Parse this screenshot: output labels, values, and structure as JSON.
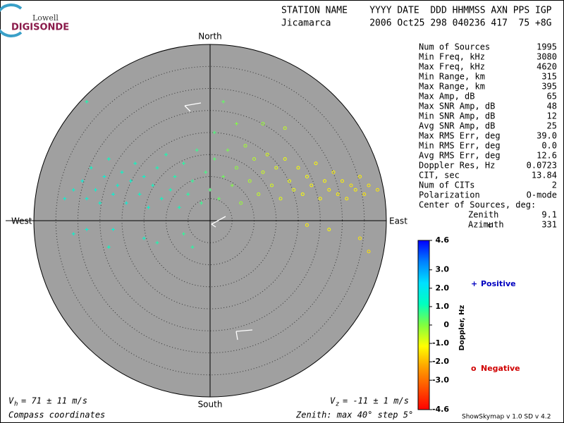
{
  "logo": {
    "top": "Lowell",
    "bottom": "DIGISONDE"
  },
  "header": {
    "line1": "STATION NAME    YYYY DATE  DDD HHMMSS AXN PPS IGP",
    "line2": "Jicamarca       2006 Oct25 298 040236 417  75 +8G"
  },
  "compass": {
    "north": "North",
    "south": "South",
    "east": "East",
    "west": "West"
  },
  "stats": {
    "rows": [
      [
        "Num of Sources",
        "1995"
      ],
      [
        "Min Freq, kHz",
        "3080"
      ],
      [
        "Max Freq, kHz",
        "4620"
      ],
      [
        "Min Range, km",
        "315"
      ],
      [
        "Max Range, km",
        "395"
      ],
      [
        "Max Amp, dB",
        "65"
      ],
      [
        "Max SNR Amp, dB",
        "48"
      ],
      [
        "Min SNR Amp, dB",
        "12"
      ],
      [
        "Avg SNR Amp, dB",
        "25"
      ],
      [
        "Max RMS Err, deg",
        "39.0"
      ],
      [
        "Min RMS Err, deg",
        "0.0"
      ],
      [
        "Avg RMS Err, deg",
        "12.6"
      ],
      [
        "Doppler Res, Hz",
        "0.0723"
      ],
      [
        "CIT, sec",
        "13.84"
      ],
      [
        "Num of CITs",
        "2"
      ],
      [
        "Polarization",
        "O-mode"
      ]
    ],
    "center_title": "Center of Sources, deg:",
    "center_rows": [
      [
        "Zenith",
        "9.1"
      ],
      [
        "Azimuth",
        "331"
      ]
    ]
  },
  "colorbar": {
    "label": "Doppler, Hz",
    "lim": [
      -4.6,
      4.6
    ],
    "colors": [
      "#ff0000",
      "#ff5000",
      "#ffa000",
      "#ffff00",
      "#80ff40",
      "#00ffc0",
      "#00e0ff",
      "#0080ff",
      "#0000ff"
    ],
    "ticks": [
      4.6,
      {
        "value": 3,
        "label": "3.0"
      },
      {
        "value": 2,
        "label": "2.0"
      },
      {
        "value": 1,
        "label": "1.0"
      },
      0,
      {
        "value": -1,
        "label": "-1.0"
      },
      {
        "value": -2,
        "label": "-2.0"
      },
      {
        "value": -3,
        "label": "-3.0"
      },
      -4.6
    ]
  },
  "legend": {
    "positive": {
      "symbol": "+",
      "text": "Positive",
      "color": "#0000c0"
    },
    "negative": {
      "symbol": "o",
      "text": "Negative",
      "color": "#d00000"
    }
  },
  "zenith_max": 40,
  "points": [
    [
      -33,
      5,
      1.5
    ],
    [
      -31,
      7,
      1.4
    ],
    [
      -29,
      9,
      1.6
    ],
    [
      -28,
      5,
      1.5
    ],
    [
      -27,
      12,
      1.3
    ],
    [
      -26,
      7,
      1.5
    ],
    [
      -25,
      4,
      1.4
    ],
    [
      -24,
      10,
      1.5
    ],
    [
      -23,
      14,
      1.2
    ],
    [
      -22,
      6,
      1.5
    ],
    [
      -21,
      8,
      1.4
    ],
    [
      -20,
      11,
      1.3
    ],
    [
      -19,
      4,
      1.6
    ],
    [
      -18,
      9,
      1.4
    ],
    [
      -17,
      13,
      1.2
    ],
    [
      -16,
      6,
      1.3
    ],
    [
      -15,
      10,
      1.3
    ],
    [
      -14,
      3,
      1.4
    ],
    [
      -13,
      8,
      1.2
    ],
    [
      -12,
      12,
      1.1
    ],
    [
      -11,
      5,
      1.2
    ],
    [
      -10,
      15,
      1.0
    ],
    [
      -9,
      7,
      1.1
    ],
    [
      -8,
      10,
      1.0
    ],
    [
      -7,
      3,
      1.1
    ],
    [
      -6,
      13,
      0.9
    ],
    [
      -5,
      6,
      0.9
    ],
    [
      -4,
      9,
      0.8
    ],
    [
      -3,
      16,
      0.7
    ],
    [
      -2,
      4,
      0.7
    ],
    [
      -1,
      11,
      0.6
    ],
    [
      0,
      7,
      0.5
    ],
    [
      1,
      14,
      0.4
    ],
    [
      2,
      5,
      0.3
    ],
    [
      3,
      10,
      0.2
    ],
    [
      4,
      16,
      0.1
    ],
    [
      5,
      8,
      0
    ],
    [
      6,
      12,
      -0.1
    ],
    [
      7,
      4,
      -0.2
    ],
    [
      8,
      17,
      -0.3
    ],
    [
      9,
      9,
      -0.4
    ],
    [
      10,
      14,
      -0.5
    ],
    [
      11,
      6,
      -0.6
    ],
    [
      12,
      11,
      -0.7
    ],
    [
      13,
      15,
      -0.8
    ],
    [
      14,
      8,
      -0.8
    ],
    [
      15,
      12,
      -0.9
    ],
    [
      16,
      5,
      -0.9
    ],
    [
      17,
      14,
      -1.0
    ],
    [
      18,
      9,
      -1.0
    ],
    [
      19,
      7,
      -1.0
    ],
    [
      20,
      12,
      -1.1
    ],
    [
      21,
      6,
      -1.1
    ],
    [
      22,
      10,
      -1.1
    ],
    [
      23,
      8,
      -1.2
    ],
    [
      24,
      13,
      -1.2
    ],
    [
      25,
      5,
      -1.2
    ],
    [
      26,
      9,
      -1.2
    ],
    [
      27,
      7,
      -1.3
    ],
    [
      28,
      11,
      -1.3
    ],
    [
      29,
      6,
      -1.3
    ],
    [
      30,
      9,
      -1.3
    ],
    [
      31,
      5,
      -1.3
    ],
    [
      32,
      8,
      -1.4
    ],
    [
      33,
      7,
      -1.3
    ],
    [
      34,
      10,
      -1.3
    ],
    [
      35,
      6,
      -1.4
    ],
    [
      36,
      8,
      -1.4
    ],
    [
      38,
      7,
      -1.4
    ],
    [
      -28,
      -2,
      1.5
    ],
    [
      -22,
      -2,
      1.5
    ],
    [
      -31,
      -3,
      1.4
    ],
    [
      -15,
      -4,
      1.3
    ],
    [
      -23,
      -6,
      1.2
    ],
    [
      -12,
      -5,
      1.0
    ],
    [
      -4,
      -6,
      0.9
    ],
    [
      3,
      27,
      0.3
    ],
    [
      -28,
      27,
      1.0
    ],
    [
      12,
      22,
      -0.2
    ],
    [
      17,
      21,
      -0.6
    ],
    [
      22,
      -1,
      -1.3
    ],
    [
      27,
      -2,
      -1.2
    ],
    [
      34,
      -4,
      -1.4
    ],
    [
      36,
      -7,
      -1.5
    ],
    [
      -6,
      -3,
      0.8
    ],
    [
      1,
      20,
      0.5
    ],
    [
      6,
      22,
      0
    ]
  ],
  "footer": {
    "vh": {
      "symbol": "V",
      "sub": "h",
      "text": "= 71 ± 11 m/s"
    },
    "vz": {
      "symbol": "V",
      "sub": "z",
      "text": "= -11 ± 1 m/s"
    },
    "coords": "Compass coordinates",
    "zenith": "Zenith: max 40°  step 5°",
    "version": "ShowSkymap v 1.0  SD v 4.2"
  }
}
